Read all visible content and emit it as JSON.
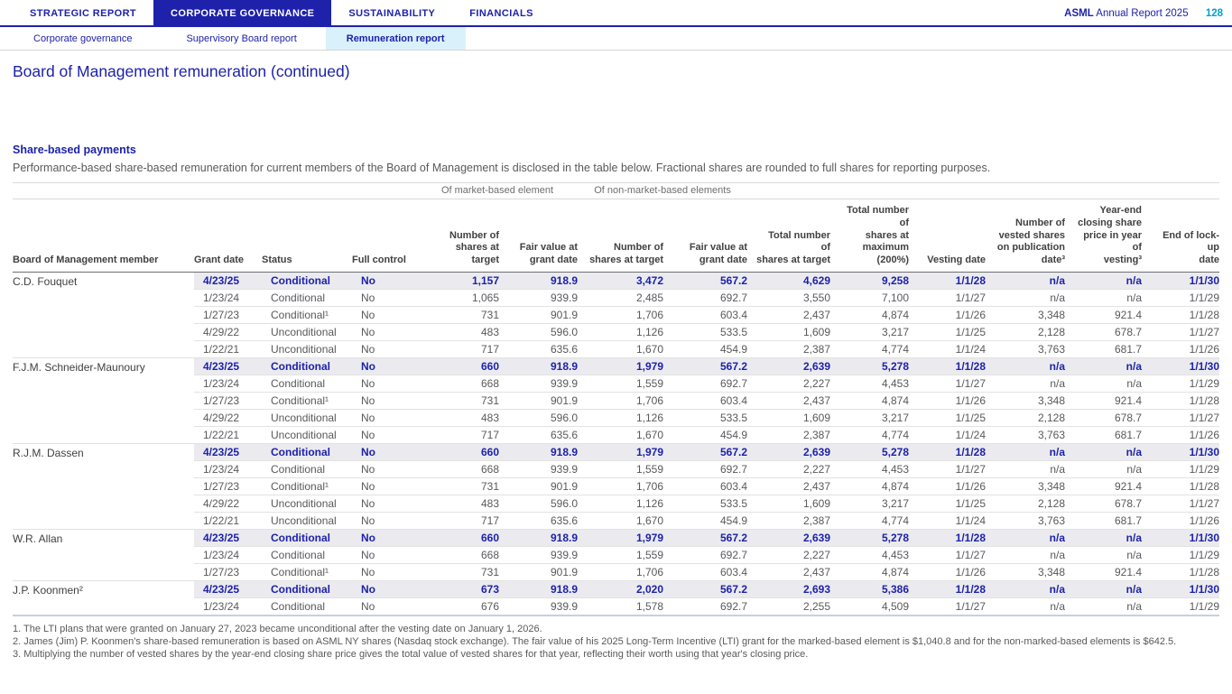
{
  "colors": {
    "brand_navy": "#1e22aa",
    "accent_cyan": "#00a2c7",
    "subtab_active_bg": "#d9f1fb",
    "highlight_row_bg": "#ebebef",
    "body_text": "#58595b"
  },
  "header": {
    "tabs": [
      {
        "label": "STRATEGIC REPORT",
        "active": false
      },
      {
        "label": "CORPORATE GOVERNANCE",
        "active": true
      },
      {
        "label": "SUSTAINABILITY",
        "active": false
      },
      {
        "label": "FINANCIALS",
        "active": false
      }
    ],
    "subtabs": [
      {
        "label": "Corporate governance",
        "active": false
      },
      {
        "label": "Supervisory Board report",
        "active": false
      },
      {
        "label": "Remuneration report",
        "active": true
      }
    ],
    "brand": "ASML",
    "report_name": "Annual Report 2025",
    "page_number": "128"
  },
  "page": {
    "title": "Board of Management remuneration (continued)",
    "section_heading": "Share-based payments",
    "intro": "Performance-based share-based remuneration for current members of the Board of Management is disclosed in the table below. Fractional shares are rounded to full shares for reporting purposes."
  },
  "table": {
    "group_headers": {
      "market": "Of market-based element",
      "non_market": "Of non-market-based elements"
    },
    "columns": [
      "Board of Management member",
      "Grant date",
      "Status",
      "Full control",
      "Number of\nshares at target",
      "Fair value at\ngrant date",
      "Number of\nshares at target",
      "Fair value at\ngrant date",
      "Total number of\nshares at target",
      "Total number of\nshares at\nmaximum\n(200%)",
      "Vesting date",
      "Number of\nvested shares\non publication\ndate³",
      "Year-end\nclosing share\nprice in year of\nvesting³",
      "End of lock-up\ndate"
    ],
    "members": [
      {
        "name": "C.D. Fouquet",
        "rows": [
          {
            "highlight": true,
            "cells": [
              "4/23/25",
              "Conditional",
              "No",
              "1,157",
              "918.9",
              "3,472",
              "567.2",
              "4,629",
              "9,258",
              "1/1/28",
              "n/a",
              "n/a",
              "1/1/30"
            ]
          },
          {
            "highlight": false,
            "cells": [
              "1/23/24",
              "Conditional",
              "No",
              "1,065",
              "939.9",
              "2,485",
              "692.7",
              "3,550",
              "7,100",
              "1/1/27",
              "n/a",
              "n/a",
              "1/1/29"
            ]
          },
          {
            "highlight": false,
            "cells": [
              "1/27/23",
              "Conditional¹",
              "No",
              "731",
              "901.9",
              "1,706",
              "603.4",
              "2,437",
              "4,874",
              "1/1/26",
              "3,348",
              "921.4",
              "1/1/28"
            ]
          },
          {
            "highlight": false,
            "cells": [
              "4/29/22",
              "Unconditional",
              "No",
              "483",
              "596.0",
              "1,126",
              "533.5",
              "1,609",
              "3,217",
              "1/1/25",
              "2,128",
              "678.7",
              "1/1/27"
            ]
          },
          {
            "highlight": false,
            "cells": [
              "1/22/21",
              "Unconditional",
              "No",
              "717",
              "635.6",
              "1,670",
              "454.9",
              "2,387",
              "4,774",
              "1/1/24",
              "3,763",
              "681.7",
              "1/1/26"
            ]
          }
        ]
      },
      {
        "name": "F.J.M. Schneider-Maunoury",
        "rows": [
          {
            "highlight": true,
            "cells": [
              "4/23/25",
              "Conditional",
              "No",
              "660",
              "918.9",
              "1,979",
              "567.2",
              "2,639",
              "5,278",
              "1/1/28",
              "n/a",
              "n/a",
              "1/1/30"
            ]
          },
          {
            "highlight": false,
            "cells": [
              "1/23/24",
              "Conditional",
              "No",
              "668",
              "939.9",
              "1,559",
              "692.7",
              "2,227",
              "4,453",
              "1/1/27",
              "n/a",
              "n/a",
              "1/1/29"
            ]
          },
          {
            "highlight": false,
            "cells": [
              "1/27/23",
              "Conditional¹",
              "No",
              "731",
              "901.9",
              "1,706",
              "603.4",
              "2,437",
              "4,874",
              "1/1/26",
              "3,348",
              "921.4",
              "1/1/28"
            ]
          },
          {
            "highlight": false,
            "cells": [
              "4/29/22",
              "Unconditional",
              "No",
              "483",
              "596.0",
              "1,126",
              "533.5",
              "1,609",
              "3,217",
              "1/1/25",
              "2,128",
              "678.7",
              "1/1/27"
            ]
          },
          {
            "highlight": false,
            "cells": [
              "1/22/21",
              "Unconditional",
              "No",
              "717",
              "635.6",
              "1,670",
              "454.9",
              "2,387",
              "4,774",
              "1/1/24",
              "3,763",
              "681.7",
              "1/1/26"
            ]
          }
        ]
      },
      {
        "name": "R.J.M. Dassen",
        "rows": [
          {
            "highlight": true,
            "cells": [
              "4/23/25",
              "Conditional",
              "No",
              "660",
              "918.9",
              "1,979",
              "567.2",
              "2,639",
              "5,278",
              "1/1/28",
              "n/a",
              "n/a",
              "1/1/30"
            ]
          },
          {
            "highlight": false,
            "cells": [
              "1/23/24",
              "Conditional",
              "No",
              "668",
              "939.9",
              "1,559",
              "692.7",
              "2,227",
              "4,453",
              "1/1/27",
              "n/a",
              "n/a",
              "1/1/29"
            ]
          },
          {
            "highlight": false,
            "cells": [
              "1/27/23",
              "Conditional¹",
              "No",
              "731",
              "901.9",
              "1,706",
              "603.4",
              "2,437",
              "4,874",
              "1/1/26",
              "3,348",
              "921.4",
              "1/1/28"
            ]
          },
          {
            "highlight": false,
            "cells": [
              "4/29/22",
              "Unconditional",
              "No",
              "483",
              "596.0",
              "1,126",
              "533.5",
              "1,609",
              "3,217",
              "1/1/25",
              "2,128",
              "678.7",
              "1/1/27"
            ]
          },
          {
            "highlight": false,
            "cells": [
              "1/22/21",
              "Unconditional",
              "No",
              "717",
              "635.6",
              "1,670",
              "454.9",
              "2,387",
              "4,774",
              "1/1/24",
              "3,763",
              "681.7",
              "1/1/26"
            ]
          }
        ]
      },
      {
        "name": "W.R. Allan",
        "rows": [
          {
            "highlight": true,
            "cells": [
              "4/23/25",
              "Conditional",
              "No",
              "660",
              "918.9",
              "1,979",
              "567.2",
              "2,639",
              "5,278",
              "1/1/28",
              "n/a",
              "n/a",
              "1/1/30"
            ]
          },
          {
            "highlight": false,
            "cells": [
              "1/23/24",
              "Conditional",
              "No",
              "668",
              "939.9",
              "1,559",
              "692.7",
              "2,227",
              "4,453",
              "1/1/27",
              "n/a",
              "n/a",
              "1/1/29"
            ]
          },
          {
            "highlight": false,
            "cells": [
              "1/27/23",
              "Conditional¹",
              "No",
              "731",
              "901.9",
              "1,706",
              "603.4",
              "2,437",
              "4,874",
              "1/1/26",
              "3,348",
              "921.4",
              "1/1/28"
            ]
          }
        ]
      },
      {
        "name": "J.P. Koonmen²",
        "rows": [
          {
            "highlight": true,
            "cells": [
              "4/23/25",
              "Conditional",
              "No",
              "673",
              "918.9",
              "2,020",
              "567.2",
              "2,693",
              "5,386",
              "1/1/28",
              "n/a",
              "n/a",
              "1/1/30"
            ]
          },
          {
            "highlight": false,
            "cells": [
              "1/23/24",
              "Conditional",
              "No",
              "676",
              "939.9",
              "1,578",
              "692.7",
              "2,255",
              "4,509",
              "1/1/27",
              "n/a",
              "n/a",
              "1/1/29"
            ]
          }
        ]
      }
    ],
    "footnotes": [
      "1. The LTI plans that were granted on January 27, 2023 became unconditional after the vesting date on January 1, 2026.",
      "2. James (Jim) P. Koonmen's share-based remuneration is based on ASML NY shares (Nasdaq stock exchange). The fair value of his 2025 Long-Term Incentive (LTI) grant for the marked-based element is $1,040.8 and for the non-marked-based elements is $642.5.",
      "3. Multiplying the number of vested shares by the year-end closing share price gives the total value of vested shares for that year, reflecting their worth using that year's closing price."
    ]
  }
}
